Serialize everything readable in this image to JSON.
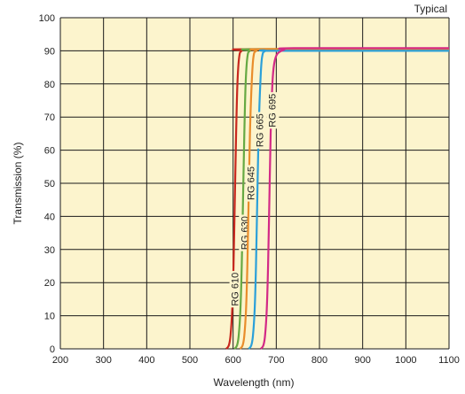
{
  "chart_data": {
    "type": "line",
    "annotation": "Typical",
    "xlabel": "Wavelength (nm)",
    "ylabel": "Transmission (%)",
    "xlim": [
      200,
      1100
    ],
    "ylim": [
      0,
      100
    ],
    "xticks": [
      200,
      300,
      400,
      500,
      600,
      700,
      800,
      900,
      1000,
      1100
    ],
    "yticks": [
      0,
      10,
      20,
      30,
      40,
      50,
      60,
      70,
      80,
      90,
      100
    ],
    "grid": true,
    "background_color": "#fcf4cd",
    "grid_color": "#1a1a1a",
    "series": [
      {
        "name": "RG 610",
        "color": "#c8281e",
        "label_position": {
          "x": 606,
          "y": 18
        },
        "points": [
          [
            584,
            0
          ],
          [
            590,
            1
          ],
          [
            594,
            4
          ],
          [
            598,
            12
          ],
          [
            601,
            25
          ],
          [
            604,
            45
          ],
          [
            607,
            65
          ],
          [
            610,
            80
          ],
          [
            614,
            88
          ],
          [
            620,
            90
          ],
          [
            640,
            90.5
          ],
          [
            1100,
            90.5
          ]
        ]
      },
      {
        "name": "RG 630",
        "color": "#66a943",
        "label_position": {
          "x": 628,
          "y": 35
        },
        "points": [
          [
            603,
            0
          ],
          [
            609,
            1
          ],
          [
            613,
            4
          ],
          [
            617,
            12
          ],
          [
            620,
            25
          ],
          [
            623,
            45
          ],
          [
            626,
            65
          ],
          [
            629,
            80
          ],
          [
            633,
            88
          ],
          [
            639,
            90
          ],
          [
            660,
            90.5
          ],
          [
            1100,
            90.5
          ]
        ]
      },
      {
        "name": "RG 645",
        "color": "#e98d2b",
        "label_position": {
          "x": 643,
          "y": 50
        },
        "points": [
          [
            616,
            0
          ],
          [
            622,
            1
          ],
          [
            626,
            4
          ],
          [
            630,
            12
          ],
          [
            633,
            25
          ],
          [
            636,
            45
          ],
          [
            639,
            65
          ],
          [
            643,
            80
          ],
          [
            647,
            88
          ],
          [
            654,
            90
          ],
          [
            680,
            90.5
          ],
          [
            1100,
            90.5
          ]
        ]
      },
      {
        "name": "RG 665",
        "color": "#2ba0d9",
        "label_position": {
          "x": 663,
          "y": 66
        },
        "points": [
          [
            636,
            0
          ],
          [
            642,
            1
          ],
          [
            646,
            4
          ],
          [
            650,
            12
          ],
          [
            653,
            25
          ],
          [
            656,
            45
          ],
          [
            659,
            65
          ],
          [
            663,
            80
          ],
          [
            667,
            88
          ],
          [
            675,
            90
          ],
          [
            700,
            90
          ],
          [
            1100,
            90
          ]
        ]
      },
      {
        "name": "RG 695",
        "color": "#d32a86",
        "label_position": {
          "x": 692,
          "y": 72
        },
        "points": [
          [
            664,
            0
          ],
          [
            670,
            1
          ],
          [
            674,
            4
          ],
          [
            678,
            12
          ],
          [
            681,
            25
          ],
          [
            684,
            45
          ],
          [
            687,
            65
          ],
          [
            691,
            80
          ],
          [
            695,
            86
          ],
          [
            702,
            89
          ],
          [
            718,
            90.3
          ],
          [
            740,
            90.8
          ],
          [
            1100,
            90.8
          ]
        ]
      }
    ]
  }
}
